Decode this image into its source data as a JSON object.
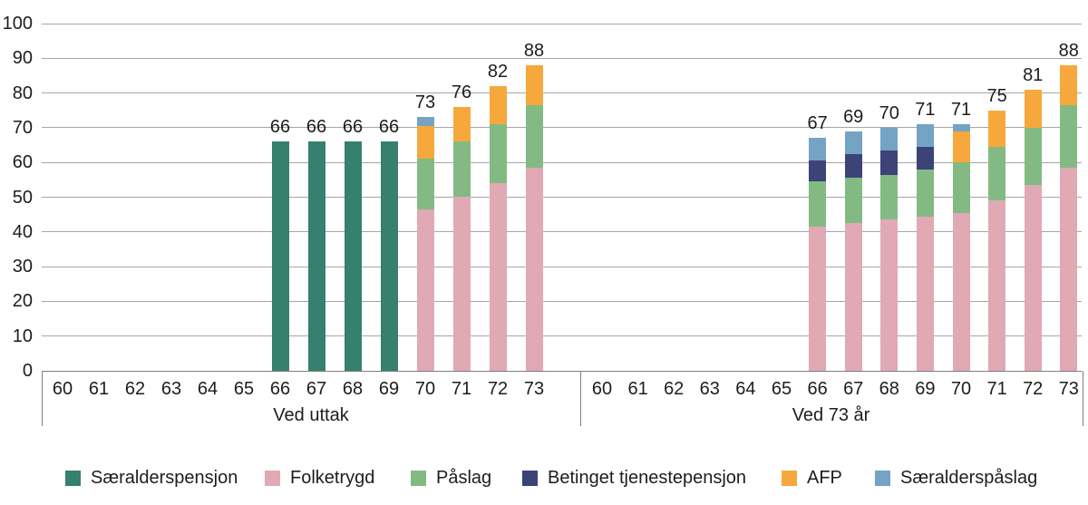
{
  "chart_data": {
    "type": "bar",
    "stacked": true,
    "title": "",
    "xlabel": "",
    "ylabel": "",
    "ylim": [
      0,
      100
    ],
    "yticks": [
      0,
      10,
      20,
      30,
      40,
      50,
      60,
      70,
      80,
      90,
      100
    ],
    "grid": true,
    "legend_position": "bottom",
    "series": [
      {
        "name": "Særalderspensjon",
        "color": "#35806f"
      },
      {
        "name": "Folketrygd",
        "color": "#e0a9b4"
      },
      {
        "name": "Påslag",
        "color": "#83ba83"
      },
      {
        "name": "Betinget tjenestepensjon",
        "color": "#3c4377"
      },
      {
        "name": "AFP",
        "color": "#f6a83c"
      },
      {
        "name": "Særalderspåslag",
        "color": "#74a3c4"
      }
    ],
    "groups": [
      {
        "label": "Ved uttak",
        "categories": [
          "60",
          "61",
          "62",
          "63",
          "64",
          "65",
          "66",
          "67",
          "68",
          "69",
          "70",
          "71",
          "72",
          "73"
        ],
        "bars": [
          {
            "total": null,
            "segments": []
          },
          {
            "total": null,
            "segments": []
          },
          {
            "total": null,
            "segments": []
          },
          {
            "total": null,
            "segments": []
          },
          {
            "total": null,
            "segments": []
          },
          {
            "total": null,
            "segments": []
          },
          {
            "total": 66,
            "segments": [
              {
                "name": "Særalderspensjon",
                "value": 66
              }
            ]
          },
          {
            "total": 66,
            "segments": [
              {
                "name": "Særalderspensjon",
                "value": 66
              }
            ]
          },
          {
            "total": 66,
            "segments": [
              {
                "name": "Særalderspensjon",
                "value": 66
              }
            ]
          },
          {
            "total": 66,
            "segments": [
              {
                "name": "Særalderspensjon",
                "value": 66
              }
            ]
          },
          {
            "total": 73,
            "segments": [
              {
                "name": "Folketrygd",
                "value": 46.5
              },
              {
                "name": "Påslag",
                "value": 14.5
              },
              {
                "name": "AFP",
                "value": 9.5
              },
              {
                "name": "Særalderspåslag",
                "value": 2.5
              }
            ]
          },
          {
            "total": 76,
            "segments": [
              {
                "name": "Folketrygd",
                "value": 50
              },
              {
                "name": "Påslag",
                "value": 16
              },
              {
                "name": "AFP",
                "value": 10
              }
            ]
          },
          {
            "total": 82,
            "segments": [
              {
                "name": "Folketrygd",
                "value": 54
              },
              {
                "name": "Påslag",
                "value": 17
              },
              {
                "name": "AFP",
                "value": 11
              }
            ]
          },
          {
            "total": 88,
            "segments": [
              {
                "name": "Folketrygd",
                "value": 58.5
              },
              {
                "name": "Påslag",
                "value": 18
              },
              {
                "name": "AFP",
                "value": 11.5
              }
            ]
          }
        ]
      },
      {
        "label": "Ved 73 år",
        "categories": [
          "60",
          "61",
          "62",
          "63",
          "64",
          "65",
          "66",
          "67",
          "68",
          "69",
          "70",
          "71",
          "72",
          "73"
        ],
        "bars": [
          {
            "total": null,
            "segments": []
          },
          {
            "total": null,
            "segments": []
          },
          {
            "total": null,
            "segments": []
          },
          {
            "total": null,
            "segments": []
          },
          {
            "total": null,
            "segments": []
          },
          {
            "total": null,
            "segments": []
          },
          {
            "total": 67,
            "segments": [
              {
                "name": "Folketrygd",
                "value": 41.5
              },
              {
                "name": "Påslag",
                "value": 13
              },
              {
                "name": "Betinget tjenestepensjon",
                "value": 6
              },
              {
                "name": "Særalderspåslag",
                "value": 6.5
              }
            ]
          },
          {
            "total": 69,
            "segments": [
              {
                "name": "Folketrygd",
                "value": 42.5
              },
              {
                "name": "Påslag",
                "value": 13
              },
              {
                "name": "Betinget tjenestepensjon",
                "value": 7
              },
              {
                "name": "Særalderspåslag",
                "value": 6.5
              }
            ]
          },
          {
            "total": 70,
            "segments": [
              {
                "name": "Folketrygd",
                "value": 43.5
              },
              {
                "name": "Påslag",
                "value": 13
              },
              {
                "name": "Betinget tjenestepensjon",
                "value": 7
              },
              {
                "name": "Særalderspåslag",
                "value": 6.5
              }
            ]
          },
          {
            "total": 71,
            "segments": [
              {
                "name": "Folketrygd",
                "value": 44.5
              },
              {
                "name": "Påslag",
                "value": 13.5
              },
              {
                "name": "Betinget tjenestepensjon",
                "value": 6.5
              },
              {
                "name": "Særalderspåslag",
                "value": 6.5
              }
            ]
          },
          {
            "total": 71,
            "segments": [
              {
                "name": "Folketrygd",
                "value": 45.5
              },
              {
                "name": "Påslag",
                "value": 14.5
              },
              {
                "name": "AFP",
                "value": 9
              },
              {
                "name": "Særalderspåslag",
                "value": 2
              }
            ]
          },
          {
            "total": 75,
            "segments": [
              {
                "name": "Folketrygd",
                "value": 49
              },
              {
                "name": "Påslag",
                "value": 15.5
              },
              {
                "name": "AFP",
                "value": 10.5
              }
            ]
          },
          {
            "total": 81,
            "segments": [
              {
                "name": "Folketrygd",
                "value": 53.5
              },
              {
                "name": "Påslag",
                "value": 16.5
              },
              {
                "name": "AFP",
                "value": 11
              }
            ]
          },
          {
            "total": 88,
            "segments": [
              {
                "name": "Folketrygd",
                "value": 58.5
              },
              {
                "name": "Påslag",
                "value": 18
              },
              {
                "name": "AFP",
                "value": 11.5
              }
            ]
          }
        ]
      }
    ],
    "colors": {
      "gridline": "#a6a6a6",
      "axis": "#7f7f7f",
      "text": "#1d1d1b"
    }
  }
}
